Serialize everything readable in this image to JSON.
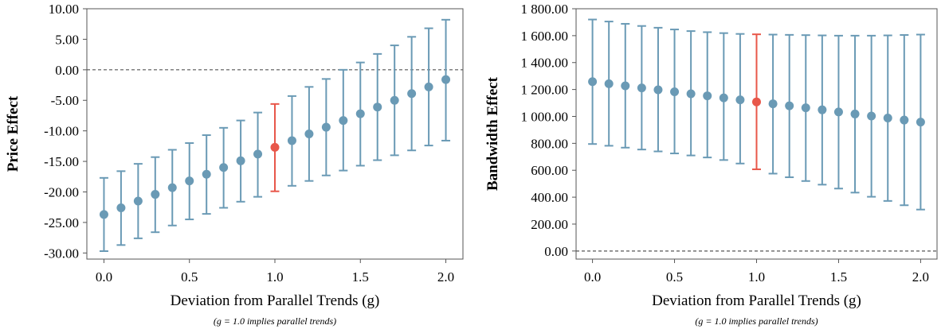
{
  "colors": {
    "default": "#6a9ab5",
    "highlight": "#e8574a",
    "axis": "#555555"
  },
  "chart_data": [
    {
      "type": "scatter",
      "subtype": "point-estimate-with-error-bars",
      "title": "",
      "xlabel": "Deviation from Parallel Trends (g)",
      "ylabel": "Price Effect",
      "note": "(g = 1.0 implies parallel trends)",
      "xlim": [
        -0.1,
        2.1
      ],
      "ylim": [
        -31,
        10
      ],
      "xticks": [
        "0.0",
        "0.5",
        "1.0",
        "1.5",
        "2.0"
      ],
      "yticks": [
        "10.00",
        "5.00",
        "0.00",
        "-5.00",
        "-10.00",
        "-15.00",
        "-20.00",
        "-25.00",
        "-30.00"
      ],
      "reference_line_y": 0,
      "highlight_x": 1.0,
      "x": [
        0.0,
        0.1,
        0.2,
        0.3,
        0.4,
        0.5,
        0.6,
        0.7,
        0.8,
        0.9,
        1.0,
        1.1,
        1.2,
        1.3,
        1.4,
        1.5,
        1.6,
        1.7,
        1.8,
        1.9,
        2.0
      ],
      "y": [
        -23.7,
        -22.6,
        -21.5,
        -20.4,
        -19.3,
        -18.2,
        -17.1,
        -16.0,
        -14.9,
        -13.8,
        -12.7,
        -11.6,
        -10.5,
        -9.4,
        -8.3,
        -7.2,
        -6.1,
        -5.0,
        -3.9,
        -2.8,
        -1.6
      ],
      "lower": [
        -29.7,
        -28.7,
        -27.6,
        -26.6,
        -25.5,
        -24.5,
        -23.6,
        -22.6,
        -21.6,
        -20.8,
        -19.9,
        -19.0,
        -18.2,
        -17.3,
        -16.5,
        -15.7,
        -14.8,
        -14.0,
        -13.2,
        -12.4,
        -11.6
      ],
      "upper": [
        -17.7,
        -16.6,
        -15.4,
        -14.3,
        -13.1,
        -12.0,
        -10.7,
        -9.5,
        -8.3,
        -7.0,
        -5.6,
        -4.3,
        -2.8,
        -1.5,
        0.0,
        1.2,
        2.6,
        4.0,
        5.4,
        6.8,
        8.2
      ]
    },
    {
      "type": "scatter",
      "subtype": "point-estimate-with-error-bars",
      "title": "",
      "xlabel": "Deviation from Parallel Trends (g)",
      "ylabel": "Bandwidth Effect",
      "note": "(g = 1.0 implies parallel trends)",
      "xlim": [
        -0.1,
        2.1
      ],
      "ylim": [
        -60,
        1800
      ],
      "xticks": [
        "0.0",
        "0.5",
        "1.0",
        "1.5",
        "2.0"
      ],
      "yticks": [
        "1 800.00",
        "1 600.00",
        "1 400.00",
        "1 200.00",
        "1 000.00",
        "800.00",
        "600.00",
        "400.00",
        "200.00",
        "0.00"
      ],
      "reference_line_y": 0,
      "highlight_x": 1.0,
      "x": [
        0.0,
        0.1,
        0.2,
        0.3,
        0.4,
        0.5,
        0.6,
        0.7,
        0.8,
        0.9,
        1.0,
        1.1,
        1.2,
        1.3,
        1.4,
        1.5,
        1.6,
        1.7,
        1.8,
        1.9,
        2.0
      ],
      "y": [
        1258,
        1243,
        1227,
        1212,
        1198,
        1183,
        1168,
        1153,
        1138,
        1123,
        1108,
        1094,
        1079,
        1064,
        1049,
        1033,
        1018,
        1003,
        988,
        973,
        958
      ],
      "lower": [
        795,
        782,
        768,
        754,
        740,
        725,
        710,
        695,
        676,
        650,
        607,
        575,
        548,
        520,
        493,
        464,
        434,
        403,
        372,
        340,
        308
      ],
      "upper": [
        1720,
        1705,
        1688,
        1672,
        1659,
        1646,
        1634,
        1626,
        1619,
        1613,
        1610,
        1608,
        1606,
        1604,
        1602,
        1600,
        1600,
        1600,
        1602,
        1605,
        1608
      ]
    }
  ]
}
